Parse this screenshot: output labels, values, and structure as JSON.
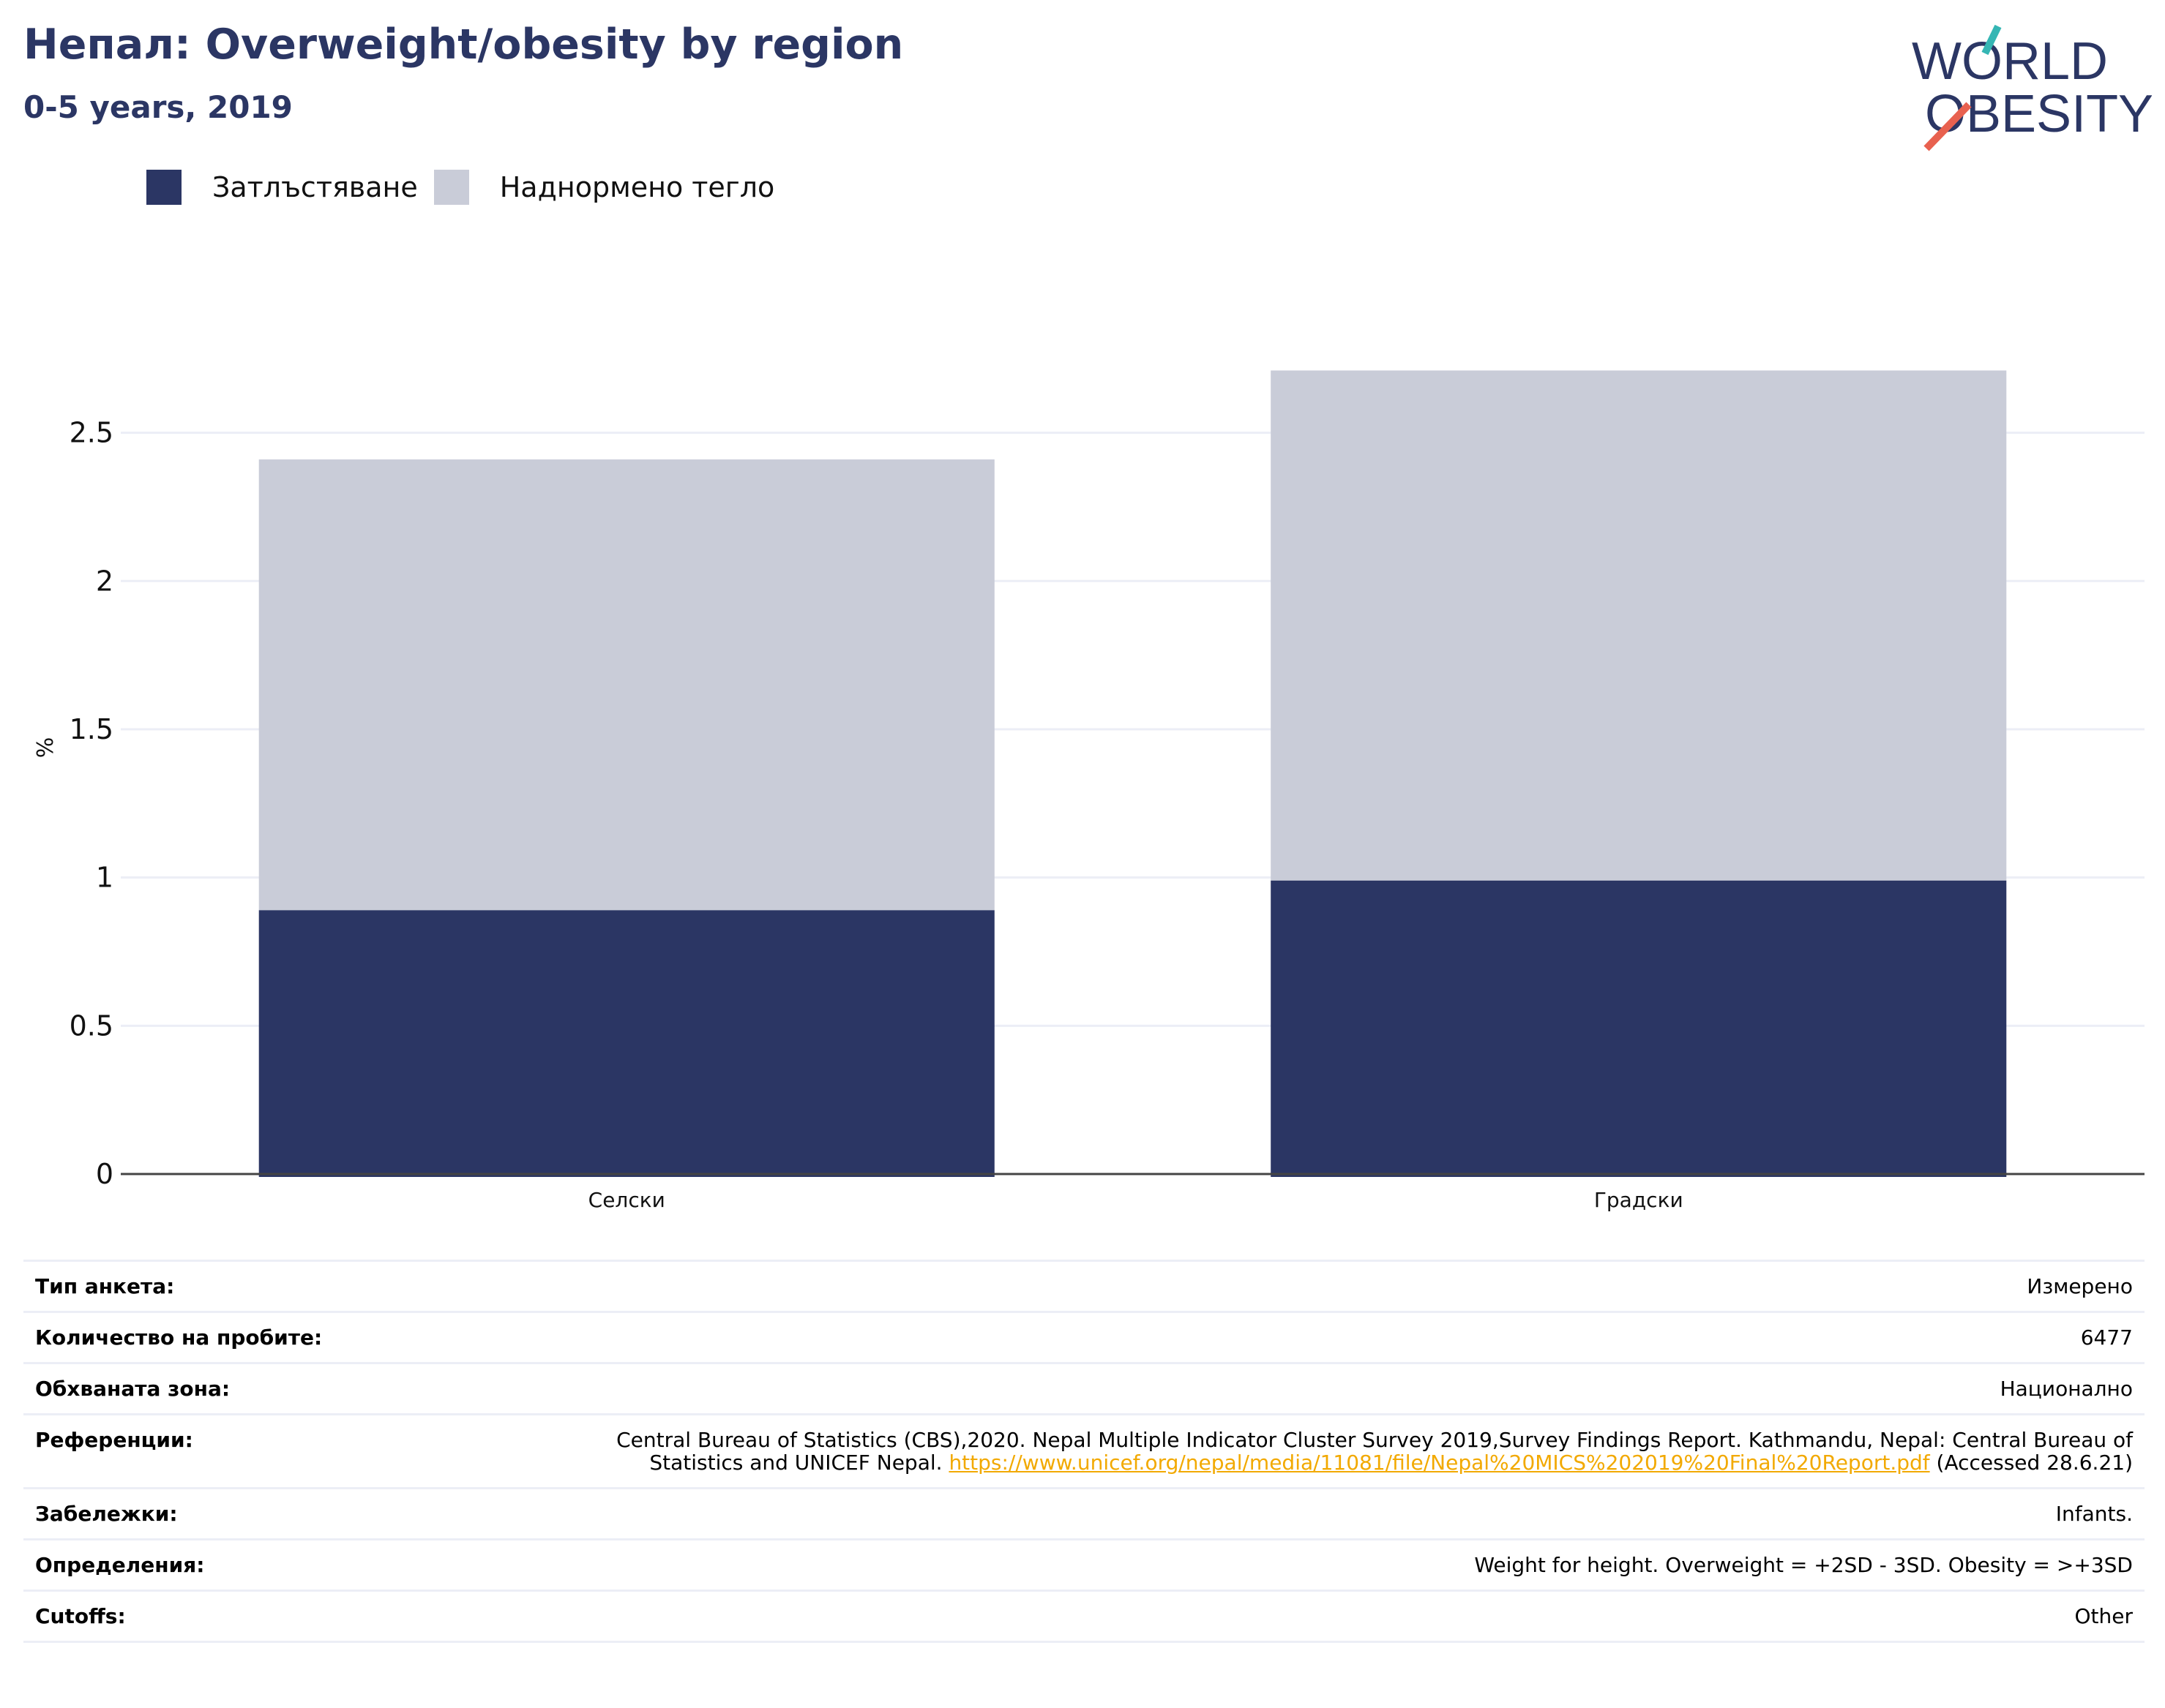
{
  "header": {
    "title": "Непал: Overweight/obesity by region",
    "subtitle": "0-5 years, 2019"
  },
  "logo": {
    "line1": "WORLD",
    "line2": "OBESITY",
    "colors": {
      "text": "#2b3664",
      "slash_top": "#35b6b4",
      "slash_bottom": "#e8614f"
    }
  },
  "colors": {
    "obesity": "#2b3664",
    "overweight": "#c9ccd8",
    "grid": "#eceef6",
    "axis": "#444444"
  },
  "chart_data": {
    "type": "bar",
    "stacked": true,
    "categories": [
      "Селски",
      "Градски"
    ],
    "series": [
      {
        "name": "Затлъстяване",
        "values": [
          0.89,
          0.99
        ],
        "color": "#2b3664"
      },
      {
        "name": "Наднормено тегло",
        "values": [
          1.52,
          1.72
        ],
        "color": "#c9ccd8"
      }
    ],
    "ylabel": "%",
    "ylim": [
      0,
      2.8
    ],
    "yticks": [
      0,
      0.5,
      1,
      1.5,
      2,
      2.5
    ],
    "ytick_labels": [
      "0",
      "0.5",
      "1",
      "1.5",
      "2",
      "2.5"
    ],
    "grid": true,
    "legend_position": "top-left"
  },
  "meta": {
    "survey_type": {
      "label": "Тип анкета:",
      "value": "Измерено"
    },
    "sample_size": {
      "label": "Количество на пробите:",
      "value": "6477"
    },
    "coverage": {
      "label": "Обхваната зона:",
      "value": "Национално"
    },
    "references": {
      "label": "Референции:",
      "text_before": "Central Bureau of Statistics (CBS),2020. Nepal Multiple Indicator Cluster Survey 2019,Survey Findings Report. Kathmandu, Nepal: Central Bureau of Statistics and UNICEF Nepal. ",
      "link": "https://www.unicef.org/nepal/media/11081/file/Nepal%20MICS%202019%20Final%20Report.pdf",
      "text_after": " (Accessed 28.6.21)"
    },
    "notes": {
      "label": "Забележки:",
      "value": "Infants."
    },
    "definitions": {
      "label": "Определения:",
      "value": "Weight for height. Overweight = +2SD - 3SD. Obesity = >+3SD"
    },
    "cutoffs": {
      "label": "Cutoffs:",
      "value": "Other"
    }
  }
}
